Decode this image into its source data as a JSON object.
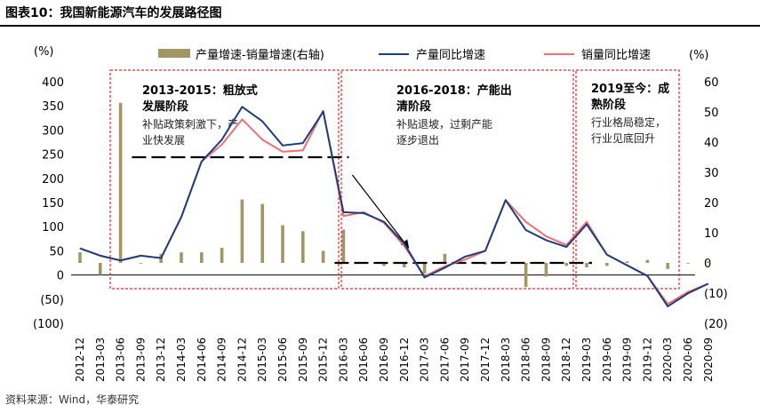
{
  "figure_title": "图表10：我国新能源汽车的发展路径图",
  "source": "资料来源：Wind，华泰研究",
  "chart_data": {
    "type": "line",
    "left_unit": "(%)",
    "right_unit": "(%)",
    "ylim_left": [
      -100,
      400
    ],
    "ylim_right": [
      -20,
      60
    ],
    "left_ticks": [
      "400",
      "350",
      "300",
      "250",
      "200",
      "150",
      "100",
      "50",
      "0",
      "(50)",
      "(100)"
    ],
    "right_ticks": [
      "60",
      "50",
      "40",
      "30",
      "20",
      "10",
      "0",
      "(10)",
      "(20)"
    ],
    "categories": [
      "2012-12",
      "2013-03",
      "2013-06",
      "2013-09",
      "2013-12",
      "2014-03",
      "2014-06",
      "2014-09",
      "2014-12",
      "2015-03",
      "2015-06",
      "2015-09",
      "2015-12",
      "2016-03",
      "2016-06",
      "2016-09",
      "2016-12",
      "2017-03",
      "2017-06",
      "2017-09",
      "2017-12",
      "2018-03",
      "2018-06",
      "2018-09",
      "2018-12",
      "2019-03",
      "2019-06",
      "2019-09",
      "2019-12",
      "2020-03",
      "2020-06",
      "2020-09"
    ],
    "series": [
      {
        "name": "产量增速-销量增速(右轴)",
        "kind": "bar",
        "axis": "right",
        "color": "#a39664",
        "values": [
          3.5,
          -4,
          53,
          0,
          3,
          3.5,
          3.5,
          5,
          21,
          19.5,
          12.5,
          10.5,
          4,
          11,
          0,
          -1,
          -1.5,
          -3.5,
          3,
          0,
          -0.5,
          0.5,
          -8,
          -4.5,
          -1,
          -1.5,
          -1,
          0.5,
          1,
          -2,
          0,
          0.5
        ]
      },
      {
        "name": "产量同比增速",
        "kind": "line",
        "axis": "left",
        "color": "#1f3d7a",
        "values": [
          55,
          40,
          30,
          40,
          35,
          120,
          235,
          280,
          348,
          318,
          268,
          273,
          338,
          130,
          128,
          110,
          65,
          -5,
          15,
          38,
          50,
          155,
          93,
          72,
          58,
          105,
          42,
          20,
          -2,
          -65,
          -38,
          -18
        ]
      },
      {
        "name": "销量同比增速",
        "kind": "line",
        "axis": "left",
        "color": "#ef6f73",
        "values": [
          55,
          40,
          30,
          40,
          35,
          120,
          235,
          270,
          322,
          280,
          255,
          258,
          340,
          122,
          130,
          108,
          60,
          -3,
          18,
          32,
          50,
          155,
          110,
          80,
          62,
          110,
          42,
          20,
          -2,
          -60,
          -35,
          -18
        ]
      }
    ],
    "reference_lines": [
      {
        "value": 35,
        "axis": "right",
        "from": "2013-09",
        "to": "2016-03"
      },
      {
        "value": 0,
        "axis": "right",
        "from": "2016-03",
        "to": "2019-03"
      }
    ],
    "phases": [
      {
        "title_lines": [
          "2013-2015：粗放式",
          "发展阶段"
        ],
        "desc_lines": [
          "补贴政策刺激下，产",
          "业快发展"
        ]
      },
      {
        "title_lines": [
          "2016-2018：产能出",
          "清阶段"
        ],
        "desc_lines": [
          "补贴退坡，过剩产能",
          "逐步退出"
        ]
      },
      {
        "title_lines": [
          "2019至今：成",
          "熟阶段"
        ],
        "desc_lines": [
          "行业格局稳定，",
          "行业见底回升"
        ]
      }
    ]
  }
}
